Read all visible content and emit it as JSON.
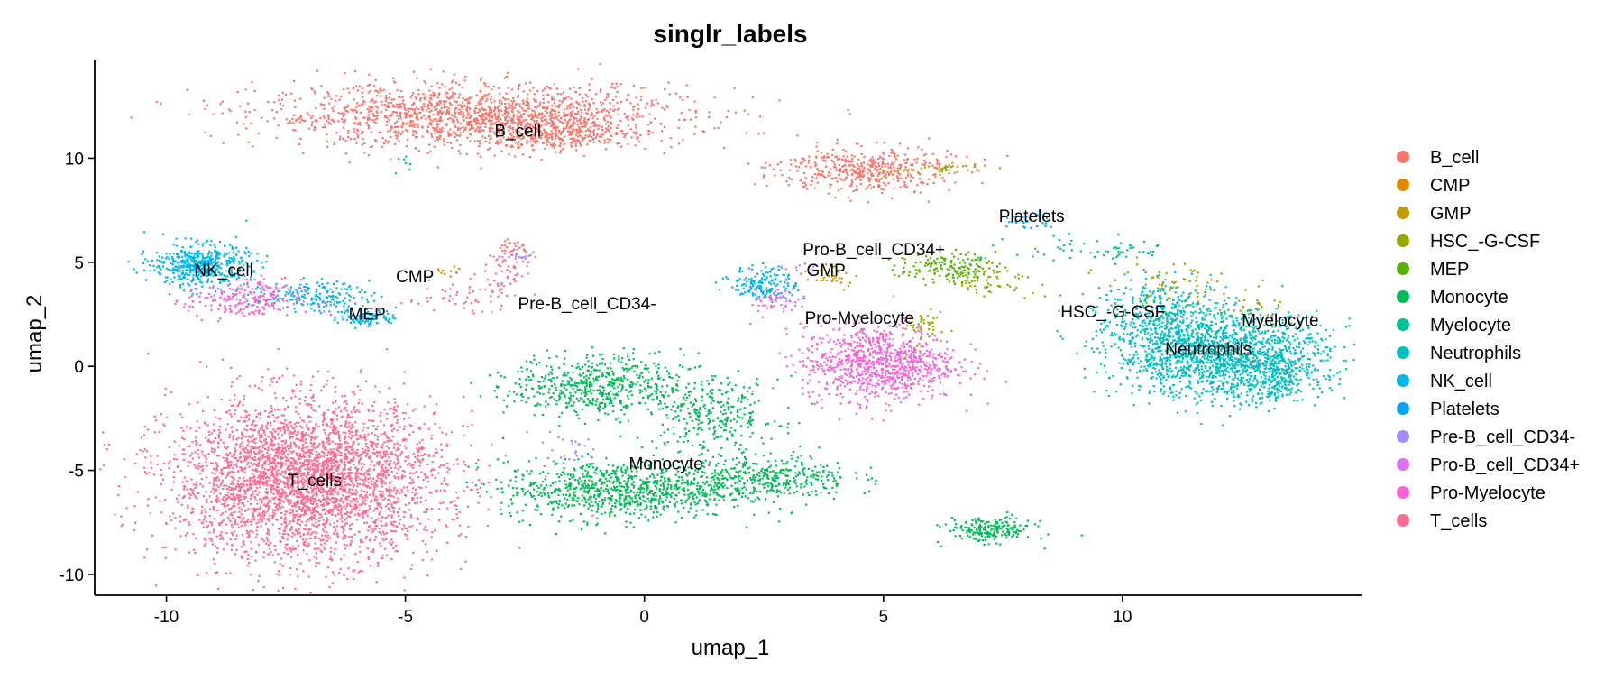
{
  "chart_data": {
    "type": "scatter",
    "title": "singlr_labels",
    "xlabel": "umap_1",
    "ylabel": "umap_2",
    "xlim": [
      -11.5,
      15
    ],
    "ylim": [
      -11,
      14.7
    ],
    "x_ticks": [
      -10,
      -5,
      0,
      5,
      10
    ],
    "y_ticks": [
      -10,
      -5,
      0,
      5,
      10
    ],
    "x_tick_labels": [
      "-10",
      "-5",
      "0",
      "5",
      "10"
    ],
    "y_tick_labels": [
      "-10",
      "-5",
      "0",
      "5",
      "10"
    ],
    "grid": false,
    "legend_position": "right",
    "series": [
      {
        "name": "B_cell",
        "color": "#F8766D",
        "clusters": [
          {
            "cx": -3.6,
            "cy": 12.1,
            "sx": 2.2,
            "sy": 0.75,
            "n": 1500
          },
          {
            "cx": -1.9,
            "cy": 11.3,
            "sx": 0.8,
            "sy": 0.45,
            "n": 350
          },
          {
            "cx": 4.6,
            "cy": 9.5,
            "sx": 0.9,
            "sy": 0.55,
            "n": 450
          },
          {
            "cx": -2.8,
            "cy": 5.8,
            "sx": 0.2,
            "sy": 0.2,
            "n": 25
          }
        ]
      },
      {
        "name": "CMP",
        "color": "#E38900",
        "clusters": [
          {
            "cx": -4.2,
            "cy": 4.6,
            "sx": 0.15,
            "sy": 0.15,
            "n": 10
          }
        ]
      },
      {
        "name": "GMP",
        "color": "#C49A00",
        "clusters": [
          {
            "cx": 3.9,
            "cy": 4.3,
            "sx": 0.3,
            "sy": 0.25,
            "n": 30
          }
        ]
      },
      {
        "name": "HSC_-G-CSF",
        "color": "#99A800",
        "clusters": [
          {
            "cx": 6.0,
            "cy": 9.5,
            "sx": 0.6,
            "sy": 0.15,
            "n": 35
          },
          {
            "cx": 7.2,
            "cy": 4.2,
            "sx": 0.5,
            "sy": 0.35,
            "n": 60
          },
          {
            "cx": 5.8,
            "cy": 1.8,
            "sx": 0.3,
            "sy": 0.5,
            "n": 45
          },
          {
            "cx": 11.0,
            "cy": 4.0,
            "sx": 0.7,
            "sy": 0.5,
            "n": 70
          },
          {
            "cx": 12.6,
            "cy": 2.7,
            "sx": 0.5,
            "sy": 0.3,
            "n": 30
          }
        ]
      },
      {
        "name": "MEP",
        "color": "#53B400",
        "clusters": [
          {
            "cx": 6.3,
            "cy": 4.8,
            "sx": 0.5,
            "sy": 0.35,
            "n": 150
          }
        ]
      },
      {
        "name": "Monocyte",
        "color": "#00BC56",
        "clusters": [
          {
            "cx": -1.0,
            "cy": -0.9,
            "sx": 0.9,
            "sy": 0.75,
            "n": 550
          },
          {
            "cx": -0.6,
            "cy": -5.9,
            "sx": 1.2,
            "sy": 0.7,
            "n": 850
          },
          {
            "cx": 2.5,
            "cy": -5.3,
            "sx": 0.9,
            "sy": 0.55,
            "n": 400
          },
          {
            "cx": 1.4,
            "cy": -2.3,
            "sx": 0.7,
            "sy": 0.9,
            "n": 300
          },
          {
            "cx": 7.2,
            "cy": -7.8,
            "sx": 0.45,
            "sy": 0.3,
            "n": 200
          }
        ]
      },
      {
        "name": "Myelocyte",
        "color": "#00C094",
        "clusters": [
          {
            "cx": 9.5,
            "cy": 5.6,
            "sx": 0.9,
            "sy": 0.35,
            "n": 60
          }
        ]
      },
      {
        "name": "Neutrophils",
        "color": "#00BFC4",
        "clusters": [
          {
            "cx": 12.0,
            "cy": 0.6,
            "sx": 1.1,
            "sy": 1.0,
            "n": 1600
          },
          {
            "cx": 10.8,
            "cy": 2.5,
            "sx": 0.7,
            "sy": 0.8,
            "n": 350
          },
          {
            "cx": 13.0,
            "cy": -0.4,
            "sx": 0.5,
            "sy": 0.6,
            "n": 250
          }
        ]
      },
      {
        "name": "NK_cell",
        "color": "#00B6EB",
        "clusters": [
          {
            "cx": -9.3,
            "cy": 4.9,
            "sx": 0.5,
            "sy": 0.5,
            "n": 500
          },
          {
            "cx": -7.0,
            "cy": 3.4,
            "sx": 0.6,
            "sy": 0.35,
            "n": 180
          },
          {
            "cx": -5.8,
            "cy": 2.4,
            "sx": 0.3,
            "sy": 0.2,
            "n": 90
          },
          {
            "cx": 2.5,
            "cy": 4.0,
            "sx": 0.35,
            "sy": 0.4,
            "n": 160
          },
          {
            "cx": -5.0,
            "cy": 10.0,
            "sx": 0.1,
            "sy": 0.4,
            "n": 8
          }
        ]
      },
      {
        "name": "Platelets",
        "color": "#06A4FF",
        "clusters": [
          {
            "cx": 7.9,
            "cy": 7.0,
            "sx": 0.3,
            "sy": 0.2,
            "n": 30
          }
        ]
      },
      {
        "name": "Pre-B_cell_CD34-",
        "color": "#A58AFF",
        "clusters": [
          {
            "cx": -2.6,
            "cy": 5.3,
            "sx": 0.3,
            "sy": 0.1,
            "n": 20
          },
          {
            "cx": -1.5,
            "cy": -3.9,
            "sx": 0.3,
            "sy": 0.5,
            "n": 25
          },
          {
            "cx": 3.2,
            "cy": 4.6,
            "sx": 0.2,
            "sy": 0.2,
            "n": 12
          }
        ]
      },
      {
        "name": "Pro-B_cell_CD34+",
        "color": "#DF70F8",
        "clusters": [
          {
            "cx": 3.0,
            "cy": 3.2,
            "sx": 0.25,
            "sy": 0.25,
            "n": 20
          }
        ]
      },
      {
        "name": "Pro-Myelocyte",
        "color": "#FB61D7",
        "clusters": [
          {
            "cx": -8.4,
            "cy": 3.2,
            "sx": 0.6,
            "sy": 0.5,
            "n": 220
          },
          {
            "cx": 4.9,
            "cy": 0.2,
            "sx": 0.8,
            "sy": 0.9,
            "n": 900
          },
          {
            "cx": 2.6,
            "cy": 3.2,
            "sx": 0.2,
            "sy": 0.4,
            "n": 30
          }
        ]
      },
      {
        "name": "T_cells",
        "color": "#FF6C91",
        "clusters": [
          {
            "cx": -7.1,
            "cy": -5.4,
            "sx": 1.4,
            "sy": 1.9,
            "n": 3600
          },
          {
            "cx": -3.8,
            "cy": 3.5,
            "sx": 0.6,
            "sy": 0.4,
            "n": 60
          },
          {
            "cx": -2.9,
            "cy": 4.8,
            "sx": 0.2,
            "sy": 0.5,
            "n": 40
          }
        ]
      }
    ],
    "annotations": [
      {
        "text": "B_cell",
        "x": -2.65,
        "y": 11.3
      },
      {
        "text": "NK_cell",
        "x": -8.8,
        "y": 4.6
      },
      {
        "text": "CMP",
        "x": -4.8,
        "y": 4.3
      },
      {
        "text": "MEP",
        "x": -5.8,
        "y": 2.5
      },
      {
        "text": "Pre-B_cell_CD34-",
        "x": -1.2,
        "y": 3.0
      },
      {
        "text": "Pro-B_cell_CD34+",
        "x": 4.8,
        "y": 5.6
      },
      {
        "text": "GMP",
        "x": 3.8,
        "y": 4.6
      },
      {
        "text": "Pro-Myelocyte",
        "x": 4.5,
        "y": 2.3
      },
      {
        "text": "Platelets",
        "x": 8.1,
        "y": 7.2
      },
      {
        "text": "HSC_-G-CSF",
        "x": 9.8,
        "y": 2.6
      },
      {
        "text": "Myelocyte",
        "x": 13.3,
        "y": 2.2
      },
      {
        "text": "Neutrophils",
        "x": 11.8,
        "y": 0.8
      },
      {
        "text": "Monocyte",
        "x": 0.45,
        "y": -4.7
      },
      {
        "text": "T_cells",
        "x": -6.9,
        "y": -5.5
      }
    ]
  }
}
